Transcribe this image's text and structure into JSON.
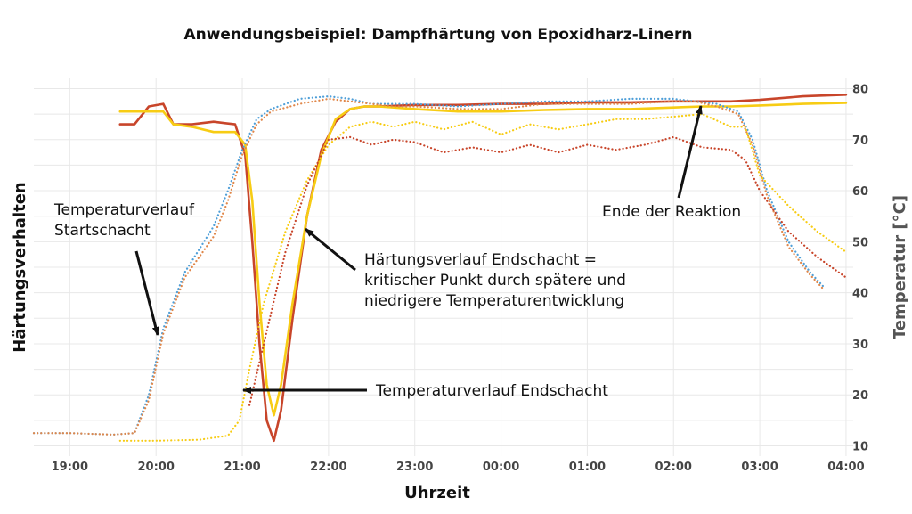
{
  "chart_data": {
    "type": "line",
    "title": "Anwendungsbeispiel: Dampfhärtung von Epoxidharz-Linern",
    "xlabel": "Uhrzeit",
    "ylabel_left": "Härtungsverhalten",
    "ylabel_right": "Temperatur [°C]",
    "x_ticks": [
      "19:00",
      "20:00",
      "21:00",
      "22:00",
      "23:00",
      "00:00",
      "01:00",
      "02:00",
      "03:00",
      "04:00"
    ],
    "xlim": [
      "18:35",
      "04:05"
    ],
    "y_right_ticks": [
      10,
      20,
      30,
      40,
      50,
      60,
      70,
      80
    ],
    "ylim_right": [
      8,
      82
    ],
    "grid": true,
    "colors": {
      "red": "#c8452a",
      "yellow": "#f7cc14",
      "blue": "#4f9fd8",
      "orange": "#e0874a",
      "grid": "#e8e8e8",
      "arrow": "#111111"
    },
    "series": [
      {
        "style": "solid",
        "color": "#c8452a",
        "x": [
          "19:35",
          "19:45",
          "19:55",
          "20:05",
          "20:12",
          "20:25",
          "20:40",
          "20:55",
          "21:02",
          "21:07",
          "21:12",
          "21:17",
          "21:22",
          "21:27",
          "21:35",
          "21:45",
          "21:55",
          "22:05",
          "22:15",
          "22:25",
          "22:35",
          "23:00",
          "23:30",
          "00:00",
          "00:30",
          "01:00",
          "01:30",
          "02:00",
          "02:20",
          "02:40",
          "03:00",
          "03:30",
          "04:00"
        ],
        "y": [
          73.0,
          73.0,
          76.5,
          77.0,
          73.0,
          73.0,
          73.5,
          73.0,
          67.0,
          50.0,
          30.0,
          15.0,
          11.0,
          17.0,
          35.0,
          55.0,
          68.0,
          73.5,
          76.0,
          76.5,
          76.5,
          76.8,
          76.8,
          77.0,
          77.0,
          77.3,
          77.3,
          77.5,
          77.5,
          77.5,
          77.8,
          78.5,
          78.8
        ]
      },
      {
        "style": "solid",
        "color": "#f7cc14",
        "x": [
          "19:35",
          "19:45",
          "19:55",
          "20:05",
          "20:12",
          "20:25",
          "20:40",
          "20:55",
          "21:02",
          "21:07",
          "21:12",
          "21:17",
          "21:22",
          "21:27",
          "21:35",
          "21:45",
          "21:55",
          "22:05",
          "22:15",
          "22:25",
          "22:35",
          "23:00",
          "23:30",
          "00:00",
          "00:30",
          "01:00",
          "01:30",
          "02:00",
          "02:20",
          "02:40",
          "03:00",
          "03:30",
          "04:00"
        ],
        "y": [
          75.5,
          75.5,
          75.5,
          75.5,
          73.0,
          72.5,
          71.5,
          71.5,
          69.0,
          58.0,
          38.0,
          22.0,
          16.0,
          22.0,
          38.0,
          55.0,
          67.0,
          74.0,
          76.0,
          76.5,
          76.5,
          76.0,
          75.5,
          75.5,
          75.8,
          76.0,
          76.0,
          76.3,
          76.5,
          76.5,
          76.7,
          77.0,
          77.2
        ]
      },
      {
        "style": "dotted",
        "color": "#4f9fd8",
        "x": [
          "18:35",
          "19:00",
          "19:30",
          "19:45",
          "19:55",
          "20:05",
          "20:20",
          "20:40",
          "20:50",
          "21:00",
          "21:10",
          "21:20",
          "21:40",
          "22:00",
          "22:15",
          "22:30",
          "22:45",
          "23:00",
          "23:30",
          "00:00",
          "00:30",
          "01:00",
          "01:30",
          "02:00",
          "02:15",
          "02:30",
          "02:45",
          "02:55",
          "03:05",
          "03:20",
          "03:35",
          "03:45"
        ],
        "y": [
          12.5,
          12.5,
          12.2,
          12.5,
          20.0,
          33.0,
          44.0,
          53.0,
          60.0,
          68.0,
          74.0,
          76.0,
          78.0,
          78.5,
          78.0,
          77.0,
          77.0,
          77.0,
          76.5,
          77.0,
          77.5,
          77.5,
          78.0,
          78.0,
          77.5,
          77.0,
          75.5,
          70.0,
          60.0,
          50.0,
          44.0,
          41.0
        ]
      },
      {
        "style": "dotted",
        "color": "#e0874a",
        "x": [
          "18:35",
          "19:00",
          "19:30",
          "19:45",
          "19:55",
          "20:05",
          "20:20",
          "20:40",
          "20:50",
          "21:00",
          "21:10",
          "21:20",
          "21:40",
          "22:00",
          "22:15",
          "22:30",
          "22:45",
          "23:00",
          "23:30",
          "00:00",
          "00:30",
          "01:00",
          "01:30",
          "02:00",
          "02:15",
          "02:30",
          "02:45",
          "02:55",
          "03:05",
          "03:20",
          "03:35",
          "03:45"
        ],
        "y": [
          12.5,
          12.5,
          12.2,
          12.5,
          19.0,
          32.0,
          43.0,
          51.0,
          58.0,
          67.0,
          73.0,
          75.5,
          77.0,
          78.0,
          77.5,
          77.0,
          76.5,
          76.5,
          76.0,
          76.0,
          77.0,
          77.0,
          77.0,
          77.5,
          77.5,
          76.5,
          75.0,
          69.0,
          59.0,
          49.0,
          43.5,
          40.5
        ]
      },
      {
        "style": "dotted",
        "color": "#f7cc14",
        "x": [
          "19:35",
          "20:00",
          "20:30",
          "20:50",
          "20:58",
          "21:05",
          "21:15",
          "21:30",
          "21:45",
          "22:00",
          "22:15",
          "22:30",
          "22:45",
          "23:00",
          "23:20",
          "23:40",
          "00:00",
          "00:20",
          "00:40",
          "01:00",
          "01:20",
          "01:40",
          "02:00",
          "02:20",
          "02:40",
          "02:50",
          "03:00",
          "03:20",
          "03:40",
          "04:00"
        ],
        "y": [
          11.0,
          11.0,
          11.2,
          12.0,
          15.0,
          25.0,
          38.0,
          52.0,
          62.0,
          69.0,
          72.5,
          73.5,
          72.5,
          73.5,
          72.0,
          73.5,
          71.0,
          73.0,
          72.0,
          73.0,
          74.0,
          74.0,
          74.5,
          75.0,
          72.5,
          72.5,
          63.0,
          57.0,
          52.0,
          48.0
        ]
      },
      {
        "style": "dotted",
        "color": "#c8452a",
        "x": [
          "21:05",
          "21:15",
          "21:30",
          "21:45",
          "22:00",
          "22:15",
          "22:30",
          "22:45",
          "23:00",
          "23:20",
          "23:40",
          "00:00",
          "00:20",
          "00:40",
          "01:00",
          "01:20",
          "01:40",
          "02:00",
          "02:20",
          "02:40",
          "02:50",
          "03:00",
          "03:20",
          "03:40",
          "04:00"
        ],
        "y": [
          18.0,
          30.0,
          48.0,
          61.0,
          70.0,
          70.5,
          69.0,
          70.0,
          69.5,
          67.5,
          68.5,
          67.5,
          69.0,
          67.5,
          69.0,
          68.0,
          69.0,
          70.5,
          68.5,
          68.0,
          66.0,
          60.0,
          52.0,
          47.0,
          43.0
        ]
      }
    ],
    "annotations": [
      {
        "lines": [
          "Temperaturverlauf",
          "Startschacht"
        ]
      },
      {
        "lines": [
          "Härtungsverlauf Endschacht =",
          "kritischer Punkt durch spätere und",
          "niedrigere Temperaturentwicklung"
        ]
      },
      {
        "lines": [
          "Temperaturverlauf Endschacht"
        ]
      },
      {
        "lines": [
          "Ende der Reaktion"
        ]
      }
    ]
  }
}
